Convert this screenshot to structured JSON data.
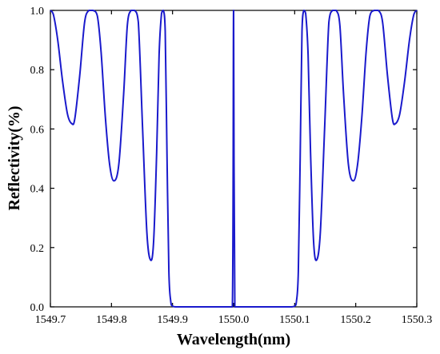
{
  "chart_data": {
    "type": "line",
    "title": "",
    "xlabel": "Wavelength(nm)",
    "ylabel": "Reflectivity(%)",
    "xlim": [
      1549.7,
      1550.3
    ],
    "ylim": [
      0.0,
      1.0
    ],
    "x_ticks": [
      "1549.7",
      "1549.8",
      "1549.9",
      "1550.0",
      "1550.1",
      "1550.2",
      "1550.3"
    ],
    "y_ticks": [
      "0.0",
      "0.2",
      "0.4",
      "0.6",
      "0.8",
      "1.0"
    ],
    "grid": false,
    "series": [
      {
        "color": "#1a1acc",
        "x": [
          1549.7,
          1549.705,
          1549.712,
          1549.72,
          1549.728,
          1549.735,
          1549.74,
          1549.748,
          1549.756,
          1549.763,
          1549.77,
          1549.777,
          1549.783,
          1549.79,
          1549.797,
          1549.804,
          1549.812,
          1549.82,
          1549.826,
          1549.832,
          1549.838,
          1549.844,
          1549.851,
          1549.858,
          1549.864,
          1549.869,
          1549.874,
          1549.878,
          1549.882,
          1549.885,
          1549.888,
          1549.891,
          1549.894,
          1549.897,
          1549.9,
          1549.905,
          1549.915,
          1549.95,
          1549.99,
          1549.998,
          1550.0,
          1550.002,
          1550.01,
          1550.05,
          1550.085,
          1550.095,
          1550.1,
          1550.103,
          1550.106,
          1550.109,
          1550.112,
          1550.115,
          1550.118,
          1550.122,
          1550.126,
          1550.131,
          1550.136,
          1550.142,
          1550.149,
          1550.156,
          1550.162,
          1550.168,
          1550.174,
          1550.18,
          1550.188,
          1550.196,
          1550.203,
          1550.21,
          1550.217,
          1550.223,
          1550.23,
          1550.237,
          1550.244,
          1550.252,
          1550.26,
          1550.265,
          1550.272,
          1550.28,
          1550.288,
          1550.295,
          1550.3
        ],
        "y": [
          1.0,
          0.985,
          0.9,
          0.76,
          0.65,
          0.618,
          0.635,
          0.78,
          0.96,
          1.0,
          1.0,
          0.98,
          0.86,
          0.64,
          0.48,
          0.425,
          0.48,
          0.72,
          0.95,
          1.0,
          1.0,
          0.96,
          0.6,
          0.25,
          0.158,
          0.22,
          0.52,
          0.85,
          0.99,
          1.0,
          0.93,
          0.5,
          0.12,
          0.02,
          0.003,
          0.0,
          0.0,
          0.0,
          0.0,
          0.0,
          1.0,
          0.0,
          0.0,
          0.0,
          0.0,
          0.0,
          0.003,
          0.02,
          0.12,
          0.5,
          0.93,
          1.0,
          0.99,
          0.85,
          0.52,
          0.22,
          0.158,
          0.25,
          0.6,
          0.96,
          1.0,
          1.0,
          0.95,
          0.72,
          0.48,
          0.425,
          0.48,
          0.64,
          0.86,
          0.98,
          1.0,
          1.0,
          0.96,
          0.78,
          0.635,
          0.618,
          0.65,
          0.76,
          0.9,
          0.985,
          1.0
        ]
      }
    ]
  }
}
